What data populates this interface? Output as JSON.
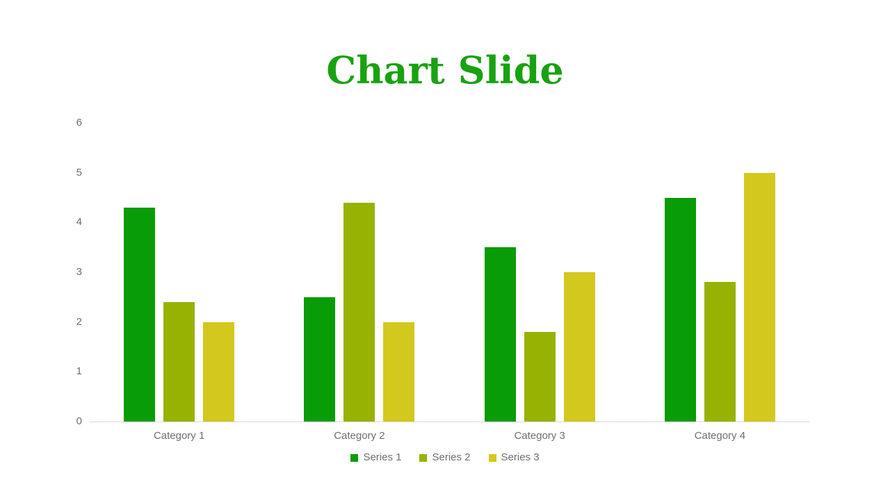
{
  "slide": {
    "title": "Chart Slide",
    "title_color": "#18a211",
    "background_color": "#ffffff"
  },
  "chart_data": {
    "type": "bar",
    "title": "Chart Slide",
    "xlabel": "",
    "ylabel": "",
    "categories": [
      "Category 1",
      "Category 2",
      "Category 3",
      "Category 4"
    ],
    "series": [
      {
        "name": "Series 1",
        "color": "#089c06",
        "values": [
          4.3,
          2.5,
          3.5,
          4.5
        ]
      },
      {
        "name": "Series 2",
        "color": "#97b203",
        "values": [
          2.4,
          4.4,
          1.8,
          2.8
        ]
      },
      {
        "name": "Series 3",
        "color": "#d3c81d",
        "values": [
          2.0,
          2.0,
          3.0,
          5.0
        ]
      }
    ],
    "ylim": [
      0,
      6
    ],
    "yticks": [
      0,
      1,
      2,
      3,
      4,
      5,
      6
    ],
    "grid": false,
    "legend_position": "bottom",
    "axis_line_color": "#d9d9d9",
    "label_color": "#6e6e6e"
  }
}
